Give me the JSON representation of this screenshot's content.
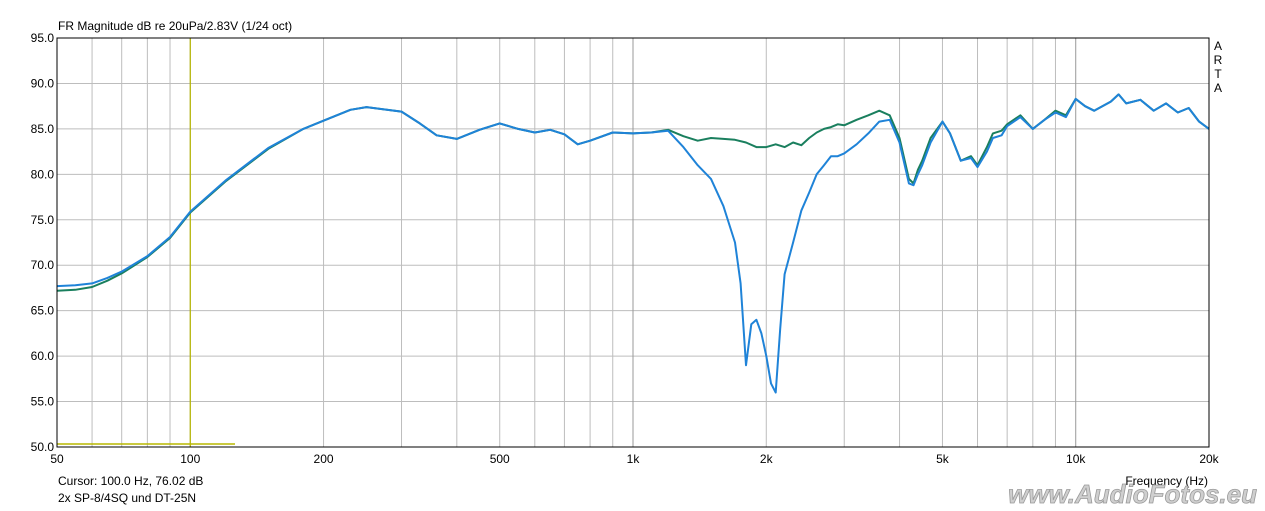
{
  "chart_data": {
    "type": "line",
    "title": "FR Magnitude dB re 20uPa/2.83V (1/24 oct)",
    "xlabel": "Frequency (Hz)",
    "ylabel": "",
    "xscale": "log",
    "xlim": [
      50,
      20000
    ],
    "ylim": [
      50,
      95
    ],
    "grid": true,
    "ytick_labels": [
      "50.0",
      "55.0",
      "60.0",
      "65.0",
      "70.0",
      "75.0",
      "80.0",
      "85.0",
      "90.0",
      "95.0"
    ],
    "xtick_labels": [
      {
        "v": 50,
        "label": "50"
      },
      {
        "v": 100,
        "label": "100"
      },
      {
        "v": 200,
        "label": "200"
      },
      {
        "v": 500,
        "label": "500"
      },
      {
        "v": 1000,
        "label": "1k"
      },
      {
        "v": 2000,
        "label": "2k"
      },
      {
        "v": 5000,
        "label": "5k"
      },
      {
        "v": 10000,
        "label": "10k"
      },
      {
        "v": 20000,
        "label": "20k"
      }
    ],
    "side_label": [
      "A",
      "R",
      "T",
      "A"
    ],
    "cursor": {
      "x": 100,
      "text": "Cursor: 100.0 Hz, 76.02 dB",
      "color": "#b8b800"
    },
    "series": [
      {
        "color": "#1a7f5e",
        "x": [
          50,
          55,
          60,
          65,
          70,
          80,
          90,
          100,
          120,
          150,
          180,
          200,
          230,
          250,
          300,
          330,
          360,
          400,
          450,
          500,
          550,
          600,
          650,
          700,
          750,
          800,
          900,
          1000,
          1100,
          1200,
          1300,
          1400,
          1500,
          1600,
          1700,
          1800,
          1900,
          2000,
          2100,
          2200,
          2300,
          2400,
          2500,
          2600,
          2700,
          2800,
          2900,
          3000,
          3200,
          3400,
          3600,
          3800,
          4000,
          4200,
          4300,
          4400,
          4500,
          4700,
          5000,
          5200,
          5500,
          5800,
          6000,
          6300,
          6500,
          6800,
          7000,
          7500,
          8000,
          8500,
          9000,
          9500,
          10000,
          10500,
          11000,
          12000,
          12500,
          13000,
          14000,
          15000,
          16000,
          17000,
          18000,
          19000,
          20000
        ],
        "y": [
          67.2,
          67.3,
          67.6,
          68.3,
          69.1,
          70.9,
          73.0,
          75.8,
          79.2,
          82.8,
          85.0,
          85.9,
          87.1,
          87.4,
          86.9,
          85.6,
          84.3,
          83.9,
          84.9,
          85.6,
          85.0,
          84.6,
          84.9,
          84.4,
          83.3,
          83.7,
          84.6,
          84.5,
          84.6,
          84.9,
          84.2,
          83.7,
          84.0,
          83.9,
          83.8,
          83.5,
          83.0,
          83.0,
          83.3,
          83.0,
          83.5,
          83.2,
          84.0,
          84.6,
          85.0,
          85.2,
          85.5,
          85.4,
          86.0,
          86.5,
          87.0,
          86.5,
          84.0,
          79.5,
          79.0,
          80.5,
          81.5,
          84.0,
          85.8,
          84.5,
          81.5,
          82.0,
          81.0,
          83.0,
          84.5,
          84.8,
          85.5,
          86.5,
          85.0,
          86.0,
          87.0,
          86.5,
          88.3,
          87.5,
          87.0,
          88.0,
          88.8,
          87.8,
          88.2,
          87.0,
          87.8,
          86.8,
          87.3,
          85.8,
          85.0
        ]
      },
      {
        "color": "#1f83d8",
        "x": [
          50,
          55,
          60,
          65,
          70,
          80,
          90,
          100,
          120,
          150,
          180,
          200,
          230,
          250,
          300,
          330,
          360,
          400,
          450,
          500,
          550,
          600,
          650,
          700,
          750,
          800,
          900,
          1000,
          1100,
          1200,
          1300,
          1400,
          1500,
          1600,
          1700,
          1750,
          1800,
          1850,
          1900,
          1950,
          2000,
          2050,
          2100,
          2150,
          2200,
          2300,
          2400,
          2500,
          2600,
          2700,
          2800,
          2900,
          3000,
          3200,
          3400,
          3600,
          3800,
          4000,
          4200,
          4300,
          4400,
          4500,
          4700,
          5000,
          5200,
          5500,
          5800,
          6000,
          6300,
          6500,
          6800,
          7000,
          7500,
          8000,
          8500,
          9000,
          9500,
          10000,
          10500,
          11000,
          12000,
          12500,
          13000,
          14000,
          15000,
          16000,
          17000,
          18000,
          19000,
          20000
        ],
        "y": [
          67.7,
          67.8,
          68.0,
          68.6,
          69.3,
          71.0,
          73.1,
          75.9,
          79.3,
          82.9,
          85.0,
          85.9,
          87.1,
          87.4,
          86.9,
          85.6,
          84.3,
          83.9,
          84.9,
          85.6,
          85.0,
          84.6,
          84.9,
          84.4,
          83.3,
          83.7,
          84.6,
          84.5,
          84.6,
          84.8,
          83.0,
          81.0,
          79.5,
          76.5,
          72.5,
          68.0,
          59.0,
          63.5,
          64.0,
          62.5,
          60.0,
          57.0,
          56.0,
          63.0,
          69.0,
          72.5,
          76.0,
          78.0,
          80.0,
          81.0,
          82.0,
          82.0,
          82.3,
          83.3,
          84.5,
          85.8,
          86.0,
          83.5,
          79.0,
          78.8,
          80.0,
          81.0,
          83.5,
          85.8,
          84.5,
          81.5,
          81.8,
          80.8,
          82.5,
          84.0,
          84.3,
          85.3,
          86.3,
          85.0,
          86.0,
          86.8,
          86.3,
          88.3,
          87.5,
          87.0,
          88.0,
          88.8,
          87.8,
          88.2,
          87.0,
          87.8,
          86.8,
          87.3,
          85.8,
          85.0
        ]
      }
    ]
  },
  "footer": {
    "cursor_text": "Cursor: 100.0 Hz, 76.02 dB",
    "label_text": "2x SP-8/4SQ und DT-25N"
  },
  "watermark": {
    "text": "www.AudioFotos.eu"
  },
  "colors": {
    "grid": "#bdbdbd",
    "frame": "#000000",
    "cursor": "#b8b800"
  }
}
